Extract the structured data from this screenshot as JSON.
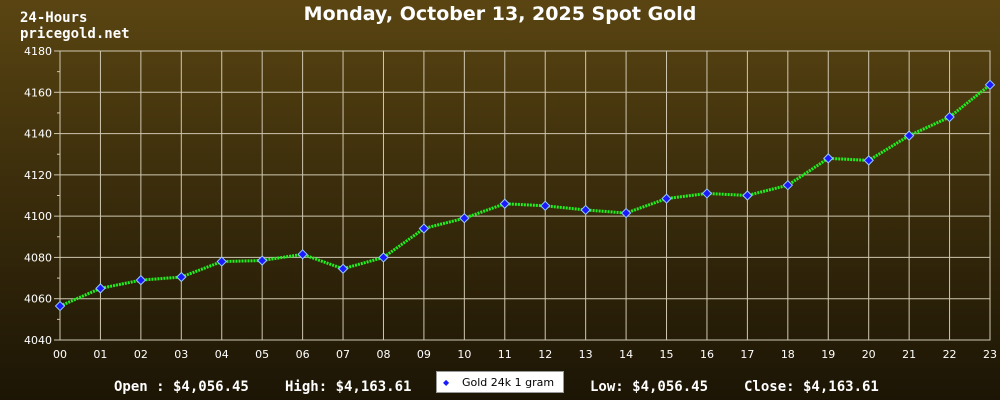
{
  "header": {
    "period": "24-Hours",
    "site": "pricegold.net",
    "title": "Monday, October 13, 2025 Spot Gold"
  },
  "summary": {
    "open": "Open : $4,056.45",
    "high": "High: $4,163.61",
    "low": "Low: $4,056.45",
    "close": "Close: $4,163.61"
  },
  "colors": {
    "line": "#22ee22",
    "marker": "#1a1aff",
    "marker_outline": "#99ccff",
    "grid": "#cfc7b0",
    "background_top": "#5a4512",
    "background_bottom": "#1c1505"
  },
  "chart_data": {
    "type": "line",
    "title": "Monday, October 13, 2025 Spot Gold",
    "x": [
      "00",
      "01",
      "02",
      "03",
      "04",
      "05",
      "06",
      "07",
      "08",
      "09",
      "10",
      "11",
      "12",
      "13",
      "14",
      "15",
      "16",
      "17",
      "18",
      "19",
      "20",
      "21",
      "22",
      "23"
    ],
    "series": [
      {
        "name": "Gold 24k 1 gram",
        "values": [
          4056.45,
          4065,
          4069,
          4070.5,
          4078,
          4078.5,
          4081.5,
          4074.5,
          4080,
          4094,
          4099,
          4106,
          4105,
          4103,
          4101.5,
          4108.5,
          4111,
          4110,
          4115,
          4128,
          4127,
          4139,
          4148,
          4163.61
        ]
      }
    ],
    "ylim": [
      4040,
      4180
    ],
    "yticks": [
      4040,
      4060,
      4080,
      4100,
      4120,
      4140,
      4160,
      4180
    ],
    "grid": true,
    "legend": "bottom-center"
  }
}
